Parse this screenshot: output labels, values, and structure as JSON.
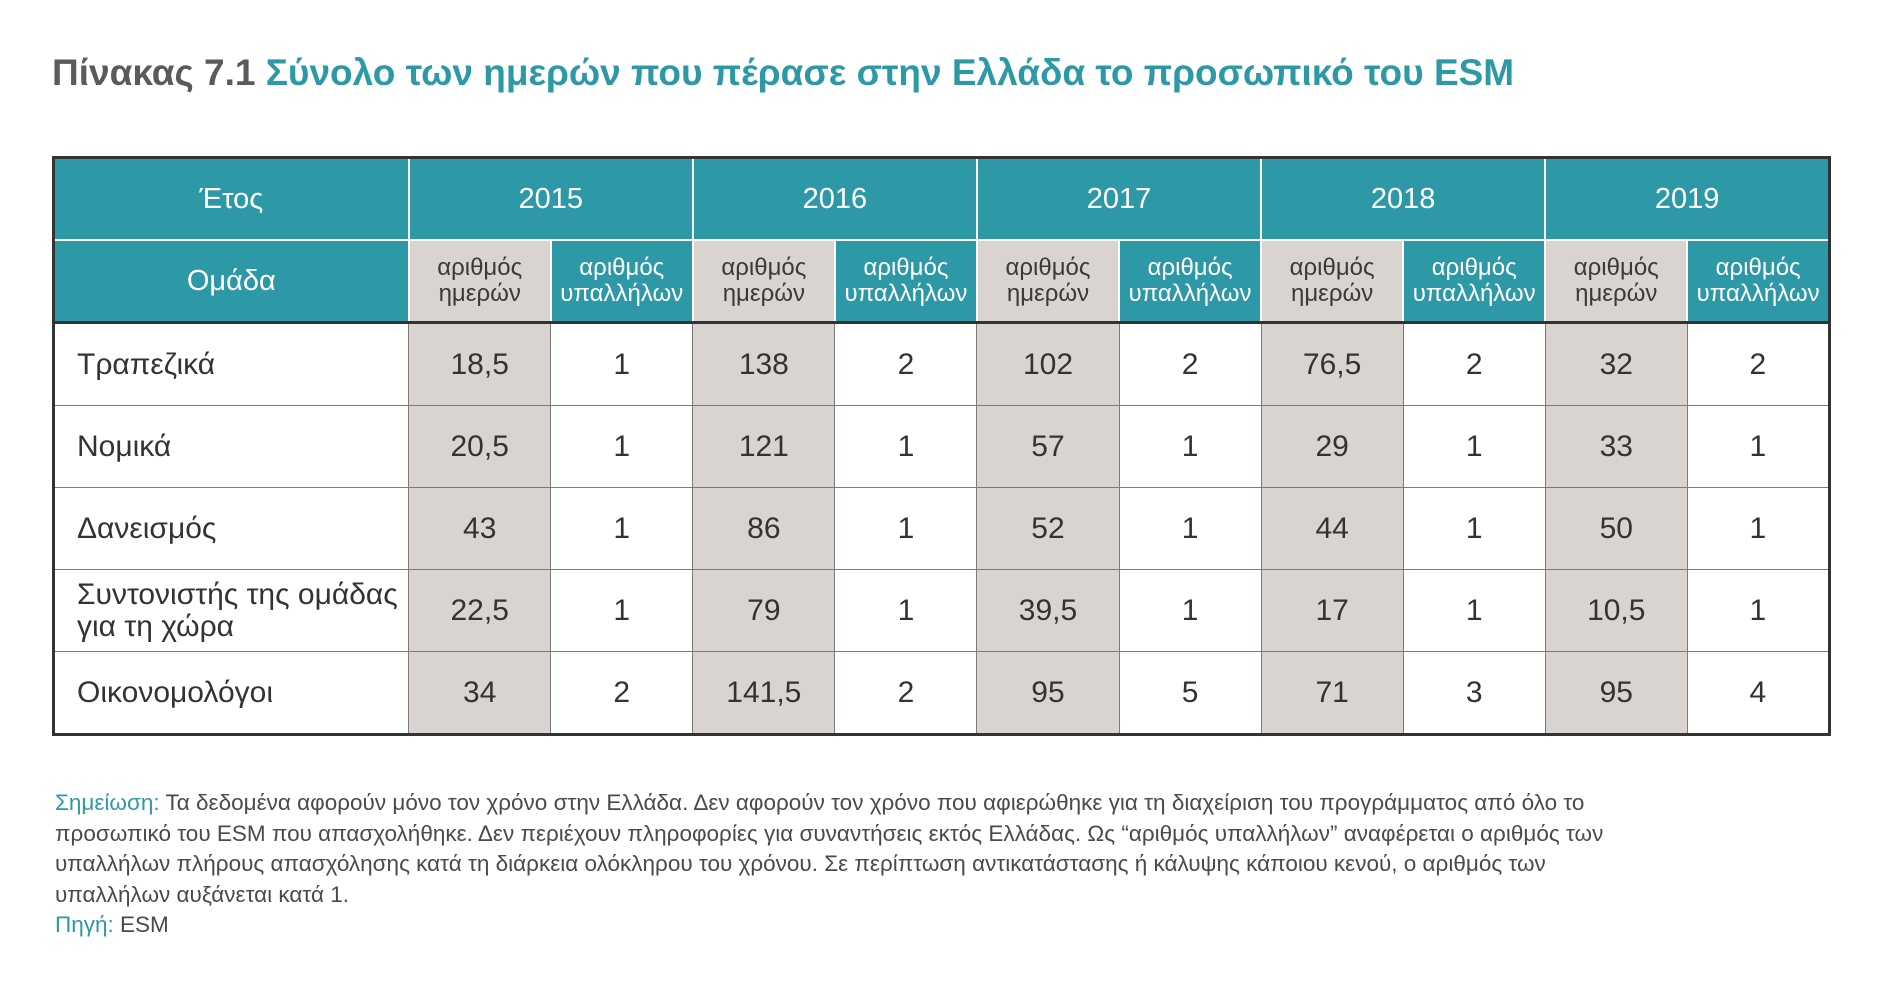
{
  "title": {
    "number": "Πίνακας 7.1",
    "text": "Σύνολο των ημερών που πέρασε στην Ελλάδα το προσωπικό του ESM"
  },
  "table": {
    "year_header": "Έτος",
    "group_header": "Ομάδα",
    "years": [
      "2015",
      "2016",
      "2017",
      "2018",
      "2019"
    ],
    "sub_headers": {
      "days": "αριθμός ημερών",
      "employees": "αριθμός υπαλλήλων"
    },
    "rows": [
      {
        "label": "Τραπεζικά",
        "cells": [
          [
            "18,5",
            "1"
          ],
          [
            "138",
            "2"
          ],
          [
            "102",
            "2"
          ],
          [
            "76,5",
            "2"
          ],
          [
            "32",
            "2"
          ]
        ]
      },
      {
        "label": "Νομικά",
        "cells": [
          [
            "20,5",
            "1"
          ],
          [
            "121",
            "1"
          ],
          [
            "57",
            "1"
          ],
          [
            "29",
            "1"
          ],
          [
            "33",
            "1"
          ]
        ]
      },
      {
        "label": "Δανεισμός",
        "cells": [
          [
            "43",
            "1"
          ],
          [
            "86",
            "1"
          ],
          [
            "52",
            "1"
          ],
          [
            "44",
            "1"
          ],
          [
            "50",
            "1"
          ]
        ]
      },
      {
        "label": "Συντονιστής της ομάδας για τη χώρα",
        "cells": [
          [
            "22,5",
            "1"
          ],
          [
            "79",
            "1"
          ],
          [
            "39,5",
            "1"
          ],
          [
            "17",
            "1"
          ],
          [
            "10,5",
            "1"
          ]
        ]
      },
      {
        "label": "Οικονομολόγοι",
        "cells": [
          [
            "34",
            "2"
          ],
          [
            "141,5",
            "2"
          ],
          [
            "95",
            "5"
          ],
          [
            "71",
            "3"
          ],
          [
            "95",
            "4"
          ]
        ]
      }
    ]
  },
  "notes": {
    "note_label": "Σημείωση:",
    "note_text": "Τα δεδομένα αφορούν μόνο τον χρόνο στην Ελλάδα. Δεν αφορούν τον χρόνο που αφιερώθηκε για τη διαχείριση του προγράμματος από όλο το προσωπικό του ESM που απασχολήθηκε. Δεν περιέχουν πληροφορίες για συναντήσεις εκτός Ελλάδας. Ως “αριθμός υπαλλήλων” αναφέρεται ο αριθμός των υπαλλήλων πλήρους απασχόλησης κατά τη διάρκεια ολόκληρου του χρόνου. Σε περίπτωση αντικατάστασης ή κάλυψης κάποιου κενού, ο αριθμός των υπαλλήλων αυξάνεται κατά 1.",
    "source_label": "Πηγή:",
    "source_text": "ESM"
  },
  "colors": {
    "accent": "#2e99a6",
    "days_fill": "#d9d4cf",
    "title_number": "#5a5a5a"
  }
}
